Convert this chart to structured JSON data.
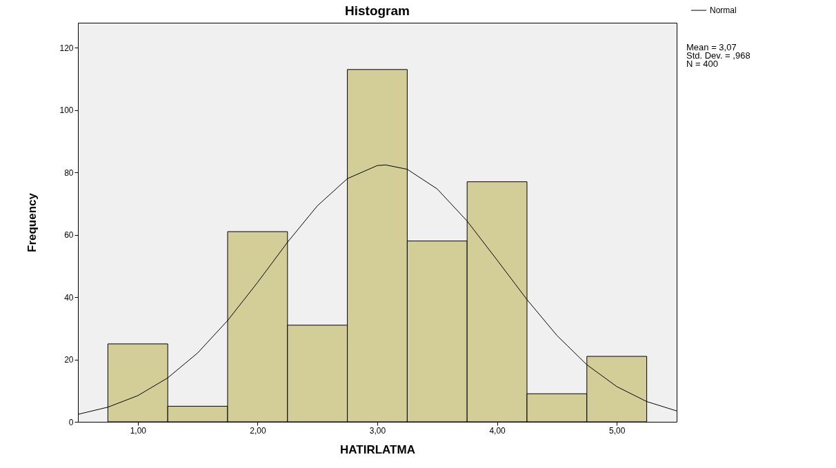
{
  "chart_data": {
    "type": "histogram",
    "title": "Histogram",
    "xlabel": "HATIRLATMA",
    "ylabel": "Frequency",
    "bins": [
      0.75,
      1.25,
      1.75,
      2.25,
      2.75,
      3.25,
      3.75,
      4.25,
      4.75,
      5.25
    ],
    "values": [
      25,
      5,
      61,
      31,
      113,
      58,
      77,
      9,
      21
    ],
    "color": "#d3ce97",
    "series": [
      {
        "name": "Normal",
        "type": "line",
        "color": "#000000",
        "x": [
          0.5,
          0.75,
          1.0,
          1.25,
          1.5,
          1.75,
          2.0,
          2.25,
          2.5,
          2.75,
          3.0,
          3.07,
          3.25,
          3.5,
          3.75,
          4.0,
          4.25,
          4.5,
          4.75,
          5.0,
          5.25,
          5.5
        ],
        "values": [
          2.4,
          4.7,
          8.4,
          14.1,
          22.1,
          32.5,
          44.7,
          57.6,
          69.3,
          78.0,
          82.2,
          82.4,
          81.0,
          74.7,
          64.4,
          51.9,
          39.2,
          27.7,
          18.3,
          11.3,
          6.5,
          3.5
        ]
      }
    ],
    "xlim": [
      0.5,
      5.5
    ],
    "ylim": [
      0,
      128
    ],
    "xticks": [
      {
        "value": 1,
        "label": "1,00"
      },
      {
        "value": 2,
        "label": "2,00"
      },
      {
        "value": 3,
        "label": "3,00"
      },
      {
        "value": 4,
        "label": "4,00"
      },
      {
        "value": 5,
        "label": "5,00"
      }
    ],
    "yticks": [
      0,
      20,
      40,
      60,
      80,
      100,
      120
    ],
    "legend": "top right",
    "grid": false,
    "annotations": [
      "Mean = 3,07",
      "Std. Dev. = ,968",
      "N = 400"
    ]
  }
}
